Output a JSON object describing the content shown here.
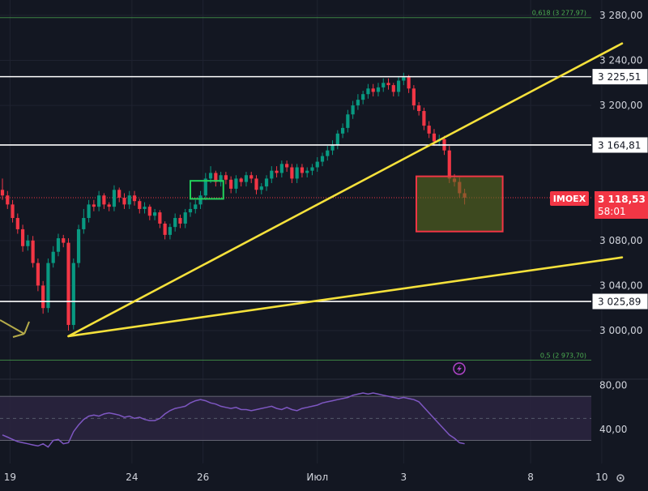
{
  "chart_data": {
    "type": "candlestick",
    "symbol": "IMOEX",
    "last_price": "3 118,53",
    "countdown": "58:01",
    "y_axis": {
      "range": [
        2980,
        3300
      ],
      "ticks": [
        "3 280,00",
        "3 240,00",
        "3 200,00",
        "3 080,00",
        "3 040,00",
        "3 000,00"
      ],
      "tick_values": [
        3280,
        3240,
        3200,
        3080,
        3040,
        3000
      ]
    },
    "x_axis": {
      "ticks": [
        "19",
        "24",
        "26",
        "Июл",
        "3",
        "8",
        "10"
      ],
      "tick_bars": [
        1.5,
        25.5,
        39.5,
        62,
        79,
        104,
        118
      ]
    },
    "horizontal_levels": [
      {
        "label": "3 225,51",
        "value": 3225.51,
        "color": "#ffffff"
      },
      {
        "label": "3 164,81",
        "value": 3164.81,
        "color": "#ffffff"
      },
      {
        "label": "3 025,89",
        "value": 3025.89,
        "color": "#ffffff"
      }
    ],
    "fib_levels": [
      {
        "label": "0,618 (3 277,97)",
        "value": 3277.97,
        "color": "#4caf50"
      },
      {
        "label": "0,5 (2 973,70)",
        "value": 2973.7,
        "color": "#4caf50"
      }
    ],
    "trend_lines": [
      {
        "from": [
          13,
          2995
        ],
        "to": [
          122,
          3255
        ],
        "color": "#f5e13b"
      },
      {
        "from": [
          13,
          2995
        ],
        "to": [
          122,
          3065
        ],
        "color": "#f5e13b"
      }
    ],
    "rectangles": [
      {
        "x": [
          81.5,
          98.5
        ],
        "y": [
          3088,
          3137
        ],
        "stroke": "#f23645",
        "fill": "#5a6b1e"
      },
      {
        "x": [
          37,
          43.5
        ],
        "y": [
          3117,
          3133
        ],
        "stroke": "#22d15a",
        "fill": "none"
      }
    ],
    "candles": {
      "open": [
        3125,
        3120,
        3112,
        3100,
        3090,
        3075,
        3080,
        3060,
        3040,
        3020,
        3060,
        3070,
        3082,
        3078,
        3005,
        3060,
        3090,
        3100,
        3112,
        3110,
        3120,
        3112,
        3110,
        3125,
        3118,
        3112,
        3120,
        3115,
        3108,
        3110,
        3102,
        3105,
        3095,
        3085,
        3092,
        3100,
        3095,
        3105,
        3108,
        3112,
        3120,
        3135,
        3140,
        3132,
        3138,
        3134,
        3126,
        3135,
        3132,
        3138,
        3135,
        3125,
        3128,
        3135,
        3142,
        3140,
        3148,
        3145,
        3135,
        3145,
        3140,
        3142,
        3145,
        3150,
        3155,
        3160,
        3165,
        3175,
        3180,
        3192,
        3200,
        3205,
        3210,
        3215,
        3212,
        3216,
        3220,
        3218,
        3212,
        3222,
        3225,
        3215,
        3200,
        3195,
        3182,
        3175,
        3168,
        3170,
        3160,
        3135,
        3132,
        3122
      ],
      "close": [
        3120,
        3112,
        3100,
        3090,
        3075,
        3080,
        3060,
        3040,
        3020,
        3060,
        3070,
        3082,
        3078,
        3005,
        3060,
        3090,
        3100,
        3112,
        3110,
        3120,
        3112,
        3110,
        3125,
        3118,
        3112,
        3120,
        3115,
        3108,
        3110,
        3102,
        3105,
        3095,
        3085,
        3092,
        3100,
        3095,
        3105,
        3108,
        3112,
        3120,
        3135,
        3140,
        3132,
        3138,
        3134,
        3126,
        3135,
        3132,
        3138,
        3135,
        3125,
        3128,
        3135,
        3142,
        3140,
        3148,
        3145,
        3135,
        3145,
        3140,
        3142,
        3145,
        3150,
        3155,
        3160,
        3165,
        3175,
        3180,
        3192,
        3200,
        3205,
        3210,
        3215,
        3212,
        3216,
        3220,
        3218,
        3212,
        3222,
        3225,
        3215,
        3200,
        3195,
        3182,
        3175,
        3168,
        3170,
        3160,
        3135,
        3132,
        3122,
        3118
      ],
      "high": [
        3135,
        3124,
        3116,
        3104,
        3094,
        3085,
        3084,
        3064,
        3044,
        3064,
        3075,
        3086,
        3085,
        3082,
        3064,
        3094,
        3108,
        3116,
        3116,
        3124,
        3122,
        3114,
        3129,
        3127,
        3122,
        3124,
        3124,
        3117,
        3114,
        3112,
        3108,
        3107,
        3097,
        3095,
        3104,
        3103,
        3108,
        3114,
        3116,
        3124,
        3140,
        3146,
        3142,
        3141,
        3141,
        3137,
        3138,
        3136,
        3141,
        3141,
        3138,
        3131,
        3138,
        3146,
        3146,
        3151,
        3151,
        3148,
        3148,
        3148,
        3145,
        3148,
        3154,
        3158,
        3164,
        3169,
        3178,
        3184,
        3196,
        3204,
        3210,
        3213,
        3219,
        3219,
        3220,
        3224,
        3224,
        3220,
        3225,
        3229,
        3227,
        3218,
        3203,
        3198,
        3186,
        3179,
        3174,
        3173,
        3164,
        3139,
        3136,
        3126
      ],
      "low": [
        3116,
        3108,
        3096,
        3086,
        3070,
        3071,
        3056,
        3035,
        3015,
        3016,
        3056,
        3066,
        3074,
        3000,
        3001,
        3056,
        3086,
        3096,
        3106,
        3106,
        3108,
        3106,
        3106,
        3114,
        3108,
        3108,
        3111,
        3104,
        3104,
        3098,
        3098,
        3091,
        3081,
        3081,
        3088,
        3091,
        3091,
        3101,
        3104,
        3108,
        3116,
        3131,
        3128,
        3128,
        3130,
        3122,
        3122,
        3128,
        3128,
        3131,
        3121,
        3121,
        3124,
        3131,
        3136,
        3136,
        3141,
        3131,
        3131,
        3136,
        3136,
        3138,
        3141,
        3146,
        3151,
        3156,
        3161,
        3171,
        3176,
        3188,
        3196,
        3201,
        3206,
        3208,
        3208,
        3212,
        3214,
        3208,
        3208,
        3218,
        3211,
        3196,
        3191,
        3178,
        3171,
        3164,
        3164,
        3156,
        3131,
        3128,
        3118,
        3112
      ]
    },
    "rsi": {
      "range": [
        20,
        90
      ],
      "ticks": [
        "80,00",
        "40,00"
      ],
      "tick_values": [
        80,
        40
      ],
      "band": [
        30,
        70
      ],
      "values": [
        35,
        33,
        31,
        29,
        28,
        27,
        26,
        25,
        27,
        24,
        30,
        31,
        27,
        28,
        38,
        44,
        49,
        52,
        53,
        52,
        54,
        55,
        54,
        53,
        51,
        52,
        50,
        51,
        49,
        48,
        48,
        50,
        54,
        57,
        59,
        60,
        61,
        64,
        66,
        67,
        66,
        64,
        63,
        61,
        60,
        59,
        60,
        58,
        58,
        57,
        58,
        59,
        60,
        61,
        59,
        58,
        60,
        58,
        57,
        59,
        60,
        61,
        62,
        64,
        65,
        66,
        67,
        68,
        69,
        71,
        72,
        73,
        72,
        73,
        72,
        71,
        70,
        69,
        68,
        69,
        68,
        67,
        65,
        60,
        55,
        50,
        45,
        40,
        35,
        32,
        28,
        27
      ]
    }
  }
}
